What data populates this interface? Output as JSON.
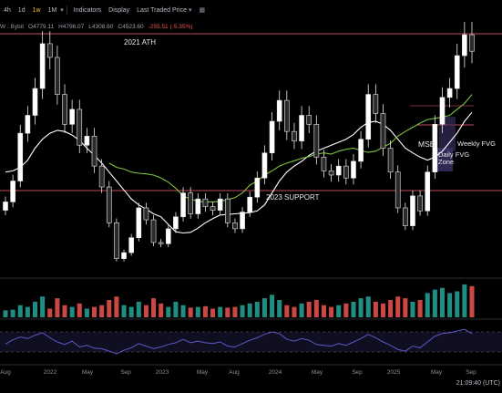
{
  "toolbar": {
    "timeframes": [
      "4h",
      "1d",
      "1w",
      "1M"
    ],
    "active_timeframe": "1w",
    "tools": [
      {
        "label": "Indicators",
        "icon": "indicators-icon"
      },
      {
        "label": "Display",
        "icon": "display-icon"
      },
      {
        "label": "Last Traded Price",
        "icon": "chevron-down-icon"
      }
    ]
  },
  "ohlc": {
    "symbol": "W . Bybit",
    "open": "O4779.11",
    "high": "H4796.07",
    "low": "L4308.60",
    "close": "C4523.60",
    "change": "-255.51 (-5.35%)"
  },
  "annotations": {
    "ath": "2021 ATH",
    "support": "2023 SUPPORT",
    "msb": "MSB",
    "daily_fvg": "Daily FVG",
    "zone": "Zone",
    "weekly_fvg": "Weekly FVG"
  },
  "time_readout": "21:09:40 (UTC)",
  "colors": {
    "background": "#000000",
    "up": "#26a69a",
    "down": "#ef5350",
    "ma_slow": "#ffffff",
    "ma_fast": "#7cc23d",
    "level_line": "#c04a5a",
    "rsi_line": "#5f56c9",
    "fvg_fill": "#3b2f63"
  },
  "chart_data": {
    "type": "candlestick",
    "x_ticks": [
      "Aug",
      "2022",
      "May",
      "Sep",
      "2023",
      "May",
      "Aug",
      "2024",
      "May",
      "Sep",
      "2025",
      "May",
      "Sep"
    ],
    "levels": [
      {
        "label": "2021 ATH",
        "y": 4800
      },
      {
        "label": "2023 SUPPORT",
        "y": 1550
      }
    ],
    "price_range": [
      800,
      5000
    ],
    "close": [
      2000,
      2350,
      3150,
      3450,
      3900,
      4650,
      4420,
      3800,
      3300,
      3550,
      2950,
      3100,
      2600,
      2250,
      1650,
      1050,
      1150,
      1400,
      1900,
      1700,
      1320,
      1300,
      1550,
      1750,
      2150,
      1800,
      2050,
      1920,
      1860,
      2050,
      1650,
      1550,
      1830,
      2080,
      2400,
      2820,
      3350,
      3700,
      3180,
      3020,
      3450,
      3300,
      2750,
      2520,
      2450,
      2600,
      2400,
      2680,
      3050,
      3800,
      3480,
      2900,
      2500,
      1900,
      1600,
      2100,
      1850,
      2500,
      3300,
      3750,
      3900,
      4450,
      4800,
      4523.6
    ],
    "ma_slow": [
      2500,
      2520,
      2580,
      2700,
      2900,
      3050,
      3150,
      3200,
      3180,
      3120,
      3030,
      2900,
      2780,
      2650,
      2500,
      2350,
      2200,
      2050,
      1950,
      1880,
      1800,
      1750,
      1620,
      1500,
      1480,
      1490,
      1560,
      1650,
      1720,
      1780,
      1790,
      1800,
      1810,
      1820,
      1850,
      1950,
      2150,
      2350,
      2500,
      2600,
      2680,
      2780,
      2850,
      2900,
      2950,
      3000,
      3050,
      3130,
      3250,
      3330,
      3350,
      3300,
      3200,
      3050,
      2900,
      2820,
      2750,
      2700,
      2750,
      2850,
      3000,
      3150,
      3350,
      3500
    ],
    "ma_fast_start": 14,
    "ma_fast": [
      2650,
      2580,
      2550,
      2500,
      2480,
      2470,
      2450,
      2400,
      2330,
      2230,
      2100,
      2050,
      2010,
      2000,
      2000,
      2010,
      2040,
      2070,
      2150,
      2280,
      2350,
      2450,
      2520,
      2600,
      2650,
      2690,
      2730,
      2760,
      2800,
      2820,
      2800,
      2850,
      2880,
      2900,
      2860,
      2830,
      2850,
      2920,
      2980,
      3100,
      3180,
      3250,
      3320,
      3380,
      3400,
      3420,
      3450,
      3550,
      3650,
      3800
    ],
    "volume": [
      0.2,
      0.22,
      0.35,
      0.3,
      0.45,
      0.6,
      0.25,
      0.55,
      0.35,
      0.3,
      0.4,
      0.25,
      0.3,
      0.35,
      0.5,
      0.6,
      0.35,
      0.3,
      0.45,
      0.35,
      0.55,
      0.4,
      0.3,
      0.45,
      0.35,
      0.28,
      0.3,
      0.32,
      0.25,
      0.3,
      0.28,
      0.3,
      0.35,
      0.4,
      0.45,
      0.55,
      0.65,
      0.5,
      0.35,
      0.3,
      0.4,
      0.45,
      0.5,
      0.35,
      0.3,
      0.35,
      0.4,
      0.45,
      0.55,
      0.6,
      0.45,
      0.4,
      0.5,
      0.6,
      0.55,
      0.45,
      0.5,
      0.7,
      0.8,
      0.85,
      0.7,
      0.75,
      0.95,
      0.9
    ],
    "rsi": [
      45,
      55,
      62,
      58,
      66,
      72,
      60,
      50,
      44,
      52,
      38,
      42,
      35,
      34,
      28,
      22,
      30,
      36,
      46,
      40,
      34,
      38,
      44,
      48,
      56,
      48,
      52,
      48,
      46,
      50,
      40,
      38,
      46,
      54,
      60,
      68,
      74,
      70,
      56,
      52,
      58,
      54,
      44,
      42,
      40,
      46,
      42,
      50,
      58,
      68,
      60,
      50,
      42,
      32,
      28,
      40,
      36,
      50,
      64,
      70,
      72,
      76,
      80,
      70
    ]
  }
}
